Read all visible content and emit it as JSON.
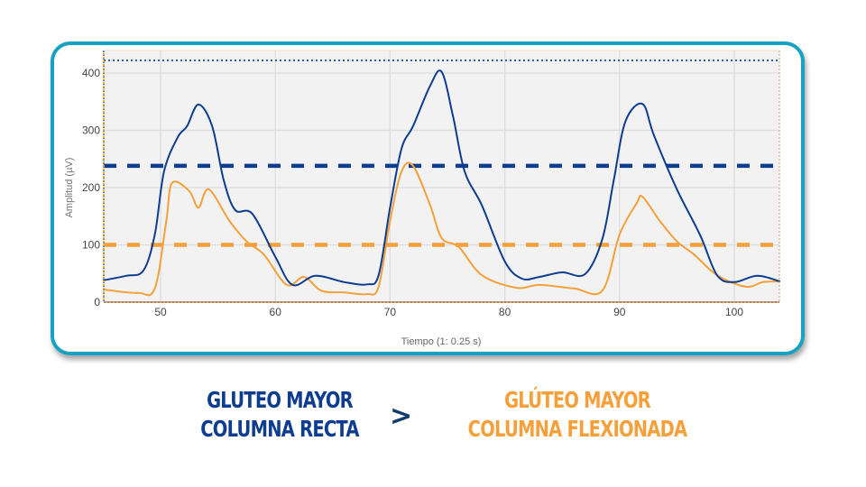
{
  "chart_data": {
    "type": "line",
    "title": "",
    "xlabel": "Tiempo (1: 0.25 s)",
    "ylabel": "Amplitud (µV)",
    "xlim": [
      45,
      104
    ],
    "ylim": [
      0,
      425
    ],
    "x_ticks": [
      50,
      60,
      70,
      80,
      90,
      100
    ],
    "y_ticks": [
      0,
      100,
      200,
      300,
      400
    ],
    "grid": true,
    "legend": "none",
    "series": [
      {
        "name": "Glúteo mayor columna recta",
        "color": "#0e3d8f",
        "x": [
          45,
          47,
          48.5,
          49.5,
          50.3,
          51.5,
          52.3,
          53.3,
          54.5,
          55.5,
          56.5,
          58,
          60,
          61.5,
          63.5,
          66,
          68,
          69,
          70,
          71,
          72,
          73.5,
          74.5,
          75.5,
          76.5,
          78,
          80,
          81.5,
          83,
          85,
          87,
          88.5,
          89.5,
          90.5,
          92,
          93,
          95,
          97,
          98.5,
          100,
          102,
          104
        ],
        "values": [
          38,
          46,
          55,
          118,
          228,
          288,
          307,
          345,
          307,
          213,
          161,
          154,
          79,
          30,
          46,
          35,
          31,
          47,
          165,
          268,
          307,
          378,
          402,
          323,
          228,
          169,
          71,
          41,
          44,
          52,
          49,
          110,
          213,
          315,
          346,
          291,
          197,
          118,
          47,
          35,
          46,
          36
        ]
      },
      {
        "name": "Glúteo mayor columna flexionada",
        "color": "#f5a03a",
        "x": [
          45,
          48,
          49.5,
          50.5,
          51,
          52.5,
          53.3,
          54.2,
          56,
          57.5,
          59,
          61,
          62.5,
          64,
          66,
          68,
          69,
          70,
          71,
          72,
          73.5,
          74.5,
          76,
          78,
          81,
          83,
          86,
          88.5,
          90,
          91.5,
          92,
          93.5,
          95,
          96.5,
          98.5,
          101,
          102.5,
          104
        ],
        "values": [
          22,
          16,
          24,
          142,
          208,
          194,
          165,
          197,
          142,
          106,
          83,
          30,
          44,
          20,
          17,
          14,
          27,
          142,
          228,
          238,
          169,
          112,
          96,
          47,
          25,
          30,
          24,
          20,
          118,
          173,
          184,
          142,
          106,
          83,
          47,
          27,
          35,
          36
        ]
      }
    ],
    "reference_lines": [
      {
        "name": "umbral-recta",
        "y": 238,
        "color": "#0e3d8f",
        "style": "dashed"
      },
      {
        "name": "umbral-flexionada",
        "y": 100,
        "color": "#f5a03a",
        "style": "dashed"
      },
      {
        "name": "max-line",
        "y": 422,
        "color": "#2a5db0",
        "style": "dotted"
      }
    ]
  },
  "axis": {
    "xlabel": "Tiempo (1: 0.25 s)",
    "ylabel": "Amplitud (µV)",
    "x_tick_labels": [
      "50",
      "60",
      "70",
      "80",
      "90",
      "100"
    ],
    "y_tick_labels": [
      "0",
      "100",
      "200",
      "300",
      "400"
    ]
  },
  "caption": {
    "left_line1": "GLUTEO MAYOR",
    "left_line2": "COLUMNA RECTA",
    "operator": ">",
    "right_line1": "GLÚTEO MAYOR",
    "right_line2": "COLUMNA FLEXIONADA",
    "left_color": "#0e3d8f",
    "right_color": "#f5a03a"
  }
}
